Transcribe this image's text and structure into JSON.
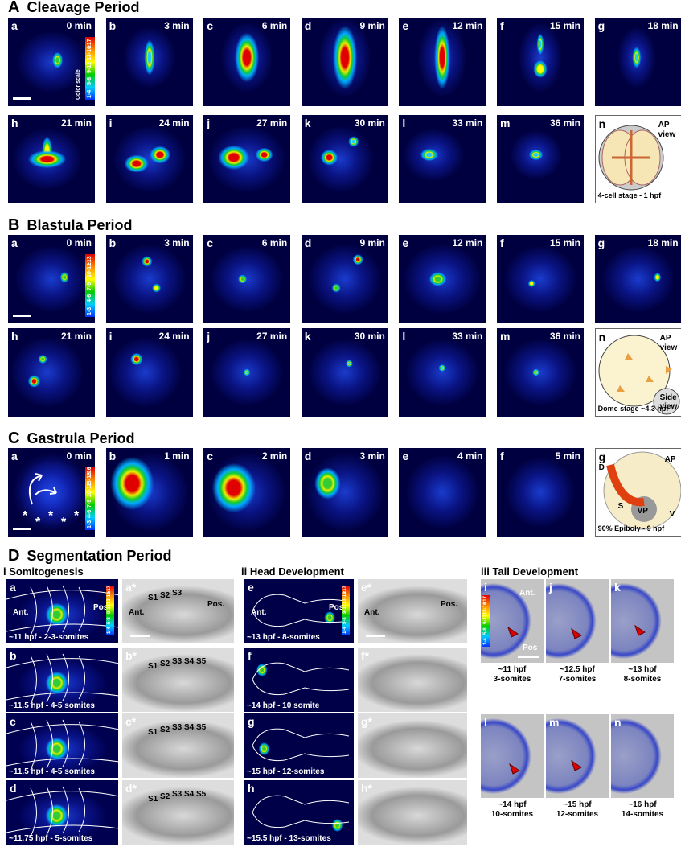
{
  "sections": [
    {
      "letter": "A",
      "title": "Cleavage Period",
      "panels": [
        {
          "label": "a",
          "time": "0 min"
        },
        {
          "label": "b",
          "time": "3 min"
        },
        {
          "label": "c",
          "time": "6 min"
        },
        {
          "label": "d",
          "time": "9 min"
        },
        {
          "label": "e",
          "time": "12 min"
        },
        {
          "label": "f",
          "time": "15 min"
        },
        {
          "label": "g",
          "time": "18 min"
        },
        {
          "label": "h",
          "time": "21 min"
        },
        {
          "label": "i",
          "time": "24 min"
        },
        {
          "label": "j",
          "time": "27 min"
        },
        {
          "label": "k",
          "time": "30 min"
        },
        {
          "label": "l",
          "time": "33 min"
        },
        {
          "label": "m",
          "time": "36 min"
        }
      ],
      "color_scale": {
        "title": "Color scale",
        "ticks": [
          "1-4",
          "5-8",
          "9-12",
          "13-16",
          "≥17"
        ]
      },
      "diagram": {
        "label": "n",
        "texts": [
          "AP",
          "view"
        ],
        "caption": "4-cell stage - 1 hpf"
      }
    },
    {
      "letter": "B",
      "title": "Blastula Period",
      "panels": [
        {
          "label": "a",
          "time": "0 min"
        },
        {
          "label": "b",
          "time": "3 min"
        },
        {
          "label": "c",
          "time": "6 min"
        },
        {
          "label": "d",
          "time": "9 min"
        },
        {
          "label": "e",
          "time": "12 min"
        },
        {
          "label": "f",
          "time": "15 min"
        },
        {
          "label": "g",
          "time": "18 min"
        },
        {
          "label": "h",
          "time": "21 min"
        },
        {
          "label": "i",
          "time": "24 min"
        },
        {
          "label": "j",
          "time": "27 min"
        },
        {
          "label": "k",
          "time": "30 min"
        },
        {
          "label": "l",
          "time": "33 min"
        },
        {
          "label": "m",
          "time": "36 min"
        }
      ],
      "color_scale": {
        "ticks": [
          "1-3",
          "4-6",
          "7-9",
          "10-12",
          "≥13"
        ]
      },
      "diagram": {
        "label": "n",
        "texts": [
          "AP",
          "view",
          "Side",
          "view"
        ],
        "caption": "Dome stage ~4.3 hpf"
      }
    },
    {
      "letter": "C",
      "title": "Gastrula Period",
      "panels": [
        {
          "label": "a",
          "time": "0 min"
        },
        {
          "label": "b",
          "time": "1 min"
        },
        {
          "label": "c",
          "time": "2 min"
        },
        {
          "label": "d",
          "time": "3 min"
        },
        {
          "label": "e",
          "time": "4 min"
        },
        {
          "label": "f",
          "time": "5 min"
        }
      ],
      "color_scale": {
        "ticks": [
          "1-3",
          "4-6",
          "7-9",
          "10-12",
          "13-15",
          "≥16"
        ]
      },
      "asterisks": [
        "*",
        "*",
        "*",
        "*",
        "*"
      ],
      "diagram": {
        "label": "g",
        "texts": [
          "AP",
          "D",
          "S",
          "VP",
          "V"
        ],
        "caption": "90% Epiboly - 9 hpf"
      }
    }
  ],
  "segmentation": {
    "letter": "D",
    "title": "Segmentation Period",
    "color_scale": {
      "ticks": [
        "1-4",
        "5-8",
        "9-12",
        "13-16",
        "≥17"
      ]
    },
    "somitogenesis": {
      "title": "i Somitogenesis",
      "rows": [
        {
          "label": "a",
          "ant": "Ant.",
          "pos": "Pos.",
          "caption": "~11 hpf - 2-3-somites",
          "star_label": "a*",
          "somites": [
            "S1",
            "S2",
            "S3"
          ],
          "star_ant": "Ant.",
          "star_pos": "Pos."
        },
        {
          "label": "b",
          "caption": "~11.5 hpf - 4-5 somites",
          "star_label": "b*",
          "somites": [
            "S1",
            "S2",
            "S3",
            "S4",
            "S5"
          ]
        },
        {
          "label": "c",
          "caption": "~11.5 hpf - 4-5 somites",
          "star_label": "c*",
          "somites": [
            "S1",
            "S2",
            "S3",
            "S4",
            "S5"
          ]
        },
        {
          "label": "d",
          "caption": "~11.75 hpf - 5-somites",
          "star_label": "d*",
          "somites": [
            "S1",
            "S2",
            "S3",
            "S4",
            "S5"
          ]
        }
      ]
    },
    "head": {
      "title": "ii Head Development",
      "rows": [
        {
          "label": "e",
          "ant": "Ant.",
          "pos": "Pos",
          "caption": "~13 hpf - 8-somites",
          "star_label": "e*",
          "star_ant": "Ant.",
          "star_pos": "Pos."
        },
        {
          "label": "f",
          "caption": "~14 hpf - 10 somite",
          "star_label": "f*"
        },
        {
          "label": "g",
          "caption": "~15 hpf - 12-somites",
          "star_label": "g*"
        },
        {
          "label": "h",
          "caption": "~15.5 hpf - 13-somites",
          "star_label": "h*"
        }
      ]
    },
    "tail": {
      "title": "iii Tail Development",
      "ant": "Ant.",
      "pos": "Pos",
      "panels": [
        {
          "label": "i",
          "caption": [
            "~11 hpf",
            "3-somites"
          ]
        },
        {
          "label": "j",
          "caption": [
            "~12.5 hpf",
            "7-somites"
          ]
        },
        {
          "label": "k",
          "caption": [
            "~13 hpf",
            "8-somites"
          ]
        },
        {
          "label": "l",
          "caption": [
            "~14 hpf",
            "10-somites"
          ]
        },
        {
          "label": "m",
          "caption": [
            "~15 hpf",
            "12-somites"
          ]
        },
        {
          "label": "n",
          "caption": [
            "~16 hpf",
            "14-somites"
          ]
        }
      ]
    }
  }
}
